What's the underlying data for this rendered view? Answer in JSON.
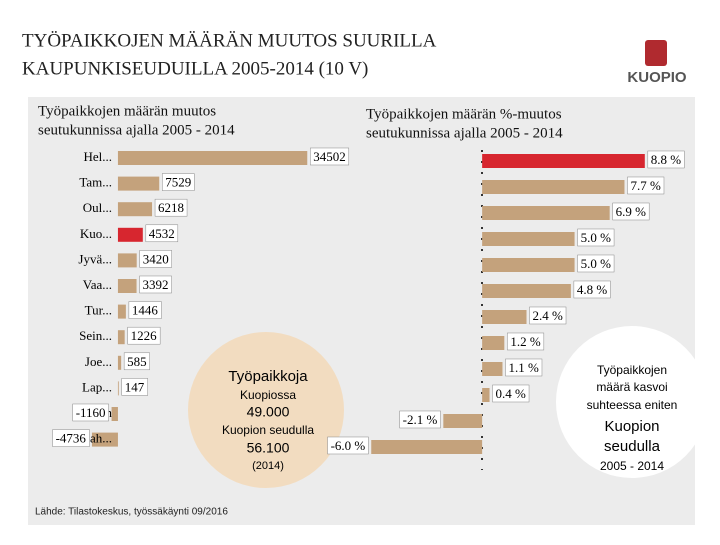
{
  "header": {
    "title_lines": [
      "TYÖPAIKKOJEN MÄÄRÄN MUUTOS SUURILLA",
      "KAUPUNKISEUDUILLA 2005-2014 (10 V)"
    ],
    "logo": "KUOPIO"
  },
  "chart_data": [
    {
      "type": "bar",
      "orientation": "horizontal",
      "title": [
        "Työpaikkojen määrän muutos",
        "seutukunnissa ajalla 2005 - 2014"
      ],
      "categories": [
        "Hel...",
        "Tam...",
        "Oul...",
        "Kuo...",
        "Jyvä...",
        "Vaa...",
        "Tur...",
        "Sein...",
        "Joe...",
        "Lap...",
        "Porin",
        "Lah..."
      ],
      "values": [
        34502,
        7529,
        6218,
        4532,
        3420,
        3392,
        1446,
        1226,
        585,
        147,
        -1160,
        -4736
      ],
      "colors": [
        "#c4a27c",
        "#c4a27c",
        "#c4a27c",
        "#d7262f",
        "#c4a27c",
        "#c4a27c",
        "#c4a27c",
        "#c4a27c",
        "#c4a27c",
        "#c4a27c",
        "#c4a27c",
        "#c4a27c"
      ],
      "xlim": [
        -5000,
        35000
      ]
    },
    {
      "type": "bar",
      "orientation": "horizontal",
      "title": [
        "Työpaikkojen määrän %-muutos",
        "seutukunnissa ajalla 2005 - 2014"
      ],
      "values": [
        8.8,
        7.7,
        6.9,
        5.0,
        5.0,
        4.8,
        2.4,
        1.2,
        1.1,
        0.4,
        -2.1,
        -6.0
      ],
      "value_labels": [
        "8.8 %",
        "7.7 %",
        "6.9 %",
        "5.0 %",
        "5.0 %",
        "4.8 %",
        "2.4 %",
        "1.2 %",
        "1.1 %",
        "0.4 %",
        "-2.1 %",
        "-6.0 %"
      ],
      "colors": [
        "#d7262f",
        "#c4a27c",
        "#c4a27c",
        "#c4a27c",
        "#c4a27c",
        "#c4a27c",
        "#c4a27c",
        "#c4a27c",
        "#c4a27c",
        "#c4a27c",
        "#c4a27c",
        "#c4a27c"
      ],
      "xlim": [
        -6.5,
        9
      ]
    }
  ],
  "callouts": [
    {
      "lines": [
        "Työpaikkoja",
        "Kuopiossa",
        "49.000",
        "Kuopion seudulla",
        "56.100",
        "(2014)"
      ]
    },
    {
      "lines": [
        "Työpaikkojen",
        "määrä kasvoi",
        "suhteessa eniten",
        "Kuopion",
        "seudulla",
        "2005 - 2014"
      ]
    }
  ],
  "source": "Lähde: Tilastokeskus, työssäkäynti 09/2016"
}
